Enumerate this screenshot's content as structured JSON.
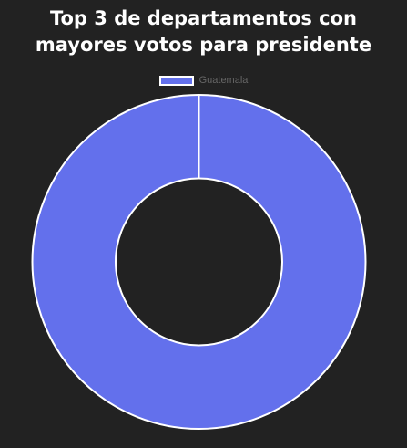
{
  "chart_data": {
    "type": "pie",
    "title_lines": [
      "Top 3 de departamentos con",
      "mayores votos para presidente"
    ],
    "legend_position": "top",
    "categories": [
      "Guatemala"
    ],
    "values": [
      100
    ],
    "colors": [
      "#6370ec"
    ],
    "border_color": "#ffffff",
    "background": "#222222"
  }
}
